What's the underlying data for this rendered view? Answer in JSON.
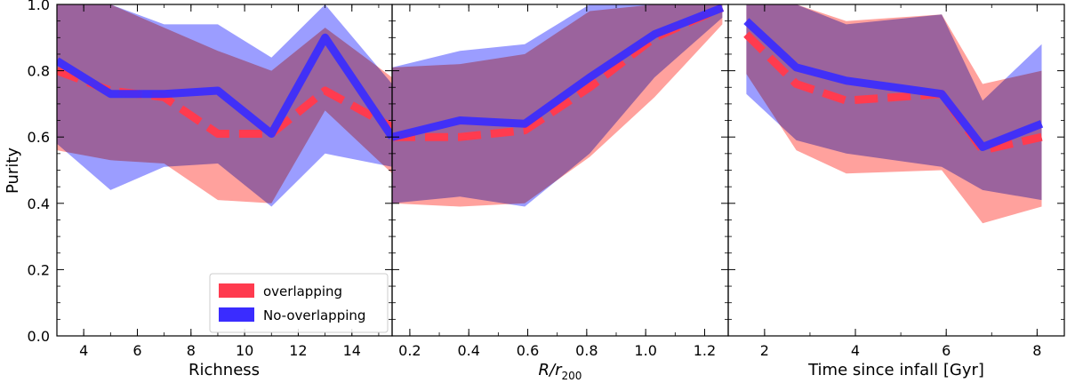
{
  "colors": {
    "overlap": "#ff3b4f",
    "overlap_band": "#ff9c98",
    "nonoverlap": "#3a2cff",
    "nonoverlap_band": "#8a8cff",
    "mix_band": "#9455be"
  },
  "shared": {
    "ylabel": "Purity",
    "ylim": [
      0,
      1.0
    ],
    "yticks": [
      "0.0",
      "0.2",
      "0.4",
      "0.6",
      "0.8",
      "1.0"
    ]
  },
  "legend": {
    "overlap_label": "overlapping",
    "nonoverlap_label": "No-overlapping"
  },
  "chart_data": [
    {
      "type": "line",
      "xlabel": "Richness",
      "xlim": [
        3,
        15.5
      ],
      "xticks": [
        4,
        6,
        8,
        10,
        12,
        14
      ],
      "xtick_labels": [
        "4",
        "6",
        "8",
        "10",
        "12",
        "14"
      ],
      "x": [
        3,
        5,
        7,
        9,
        11,
        13,
        15.5
      ],
      "series": [
        {
          "name": "overlapping",
          "values": [
            0.8,
            0.74,
            0.72,
            0.61,
            0.61,
            0.74,
            0.63
          ],
          "band_low": [
            0.56,
            0.53,
            0.52,
            0.41,
            0.4,
            0.68,
            0.49
          ],
          "band_high": [
            1.0,
            1.0,
            0.93,
            0.86,
            0.8,
            0.93,
            0.78
          ]
        },
        {
          "name": "No-overlapping",
          "values": [
            0.83,
            0.73,
            0.73,
            0.74,
            0.61,
            0.9,
            0.6
          ],
          "band_low": [
            0.58,
            0.44,
            0.51,
            0.52,
            0.39,
            0.55,
            0.51
          ],
          "band_high": [
            1.0,
            1.0,
            0.94,
            0.94,
            0.84,
            1.0,
            0.76
          ]
        }
      ]
    },
    {
      "type": "line",
      "xlabel": "R/r200",
      "xlabel_main": "R/r",
      "xlabel_sub": "200",
      "xlim": [
        0.14,
        1.28
      ],
      "xticks": [
        0.2,
        0.4,
        0.6,
        0.8,
        1.0,
        1.2
      ],
      "xtick_labels": [
        "0.2",
        "0.4",
        "0.6",
        "0.8",
        "1.0",
        "1.2"
      ],
      "x": [
        0.14,
        0.37,
        0.59,
        0.81,
        1.03,
        1.26
      ],
      "series": [
        {
          "name": "overlapping",
          "values": [
            0.6,
            0.6,
            0.62,
            0.75,
            0.9,
            0.99
          ],
          "band_low": [
            0.4,
            0.39,
            0.4,
            0.54,
            0.72,
            0.94
          ],
          "band_high": [
            0.81,
            0.82,
            0.85,
            0.98,
            1.0,
            1.0
          ]
        },
        {
          "name": "No-overlapping",
          "values": [
            0.6,
            0.65,
            0.64,
            0.78,
            0.91,
            0.99
          ],
          "band_low": [
            0.4,
            0.42,
            0.39,
            0.55,
            0.78,
            0.96
          ],
          "band_high": [
            0.81,
            0.86,
            0.88,
            1.0,
            1.0,
            1.0
          ]
        }
      ]
    },
    {
      "type": "line",
      "xlabel": "Time since infall [Gyr]",
      "xlim": [
        1.2,
        8.6
      ],
      "xticks": [
        2,
        4,
        6,
        8
      ],
      "xtick_labels": [
        "2",
        "4",
        "6",
        "8"
      ],
      "x": [
        1.6,
        2.7,
        3.8,
        5.9,
        6.8,
        8.1
      ],
      "series": [
        {
          "name": "overlapping",
          "values": [
            0.91,
            0.76,
            0.71,
            0.73,
            0.56,
            0.6
          ],
          "band_low": [
            0.79,
            0.56,
            0.49,
            0.5,
            0.34,
            0.39
          ],
          "band_high": [
            1.0,
            1.0,
            0.95,
            0.97,
            0.76,
            0.8
          ]
        },
        {
          "name": "No-overlapping",
          "values": [
            0.95,
            0.81,
            0.77,
            0.73,
            0.57,
            0.64
          ],
          "band_low": [
            0.73,
            0.59,
            0.55,
            0.51,
            0.44,
            0.41
          ],
          "band_high": [
            1.0,
            1.0,
            0.94,
            0.97,
            0.71,
            0.88
          ]
        }
      ]
    }
  ]
}
